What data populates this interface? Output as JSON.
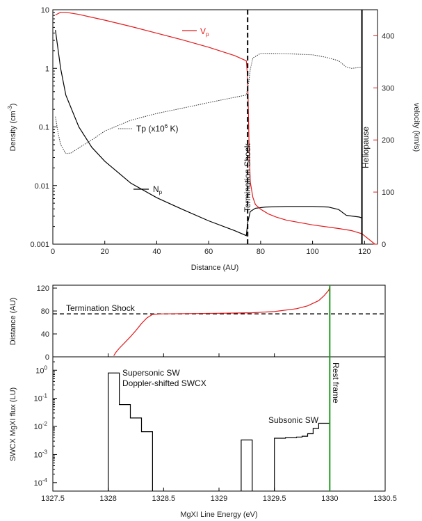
{
  "colors": {
    "velocity": "#e31a1c",
    "rest_frame": "#1a9a1a",
    "axis": "#000000"
  },
  "chart_data": [
    {
      "type": "line",
      "xlabel": "Distance (AU)",
      "ylabel": "Density (cm",
      "ylabel_sup": "-3",
      "ylabel_tail": ")",
      "ylabel_right": "velocity (km/s)",
      "xlim": [
        0,
        125
      ],
      "ylim": [
        0.001,
        10
      ],
      "ylim_right": [
        0,
        450
      ],
      "y_scale": "log",
      "x_ticks": [
        "0",
        "20",
        "40",
        "60",
        "80",
        "100",
        "120"
      ],
      "y_ticks": [
        "0.001",
        "0.01",
        "0.1",
        "1",
        "10"
      ],
      "y_right_ticks": [
        "0",
        "100",
        "200",
        "300",
        "400"
      ],
      "labels": {
        "vp": "V",
        "vp_sub": "p",
        "np": "N",
        "np_sub": "p",
        "tp": "Tp (x10",
        "tp_sup": "6",
        "tp_tail": " K)",
        "termination_shock": "Termination Shock",
        "heliopause": "Heliopause"
      },
      "termination_shock_x": 75,
      "heliopause_x": 119,
      "series": [
        {
          "id": "np",
          "axis": "left",
          "x": [
            1,
            3,
            5,
            10,
            15,
            20,
            30,
            40,
            50,
            60,
            70,
            74.5,
            75,
            76,
            78,
            82,
            90,
            100,
            106,
            110,
            113,
            118,
            119
          ],
          "y": [
            4.5,
            1.0,
            0.35,
            0.1,
            0.045,
            0.026,
            0.011,
            0.0062,
            0.0039,
            0.0025,
            0.0017,
            0.0014,
            0.0023,
            0.0036,
            0.0041,
            0.0043,
            0.0044,
            0.0044,
            0.0043,
            0.0039,
            0.0031,
            0.0029,
            0.0028
          ]
        },
        {
          "id": "tp",
          "axis": "left",
          "x": [
            1,
            2,
            3,
            5,
            7,
            10,
            15,
            20,
            30,
            40,
            50,
            60,
            70,
            74.5,
            75.5,
            76,
            77,
            80,
            90,
            100,
            105,
            110,
            113,
            115,
            117,
            119
          ],
          "y": [
            0.15,
            0.08,
            0.05,
            0.035,
            0.036,
            0.044,
            0.06,
            0.085,
            0.13,
            0.17,
            0.21,
            0.26,
            0.32,
            0.35,
            0.6,
            0.95,
            1.5,
            1.8,
            1.78,
            1.7,
            1.55,
            1.35,
            1.05,
            1.0,
            1.02,
            1.05
          ]
        },
        {
          "id": "vp",
          "axis": "right",
          "x": [
            1,
            3,
            5,
            10,
            20,
            30,
            40,
            50,
            60,
            70,
            74.5,
            75,
            75.5,
            76,
            77,
            78,
            80,
            83,
            86,
            90,
            100,
            110,
            115,
            119,
            124
          ],
          "y": [
            440,
            445,
            445,
            441,
            430,
            418,
            405,
            392,
            378,
            362,
            352,
            320,
            200,
            120,
            90,
            76,
            67,
            58,
            52,
            46,
            37,
            30,
            26,
            20,
            0
          ]
        }
      ]
    },
    {
      "type": "line",
      "ylabel": "Distance (AU)",
      "xlim": [
        1327.5,
        1330.5
      ],
      "ylim": [
        0,
        125
      ],
      "y_ticks": [
        "0",
        "40",
        "80",
        "120"
      ],
      "labels": {
        "termination_shock": "Termination Shock"
      },
      "termination_shock_y": 75,
      "series": [
        {
          "id": "distance",
          "x": [
            1328.05,
            1328.07,
            1328.1,
            1328.15,
            1328.2,
            1328.25,
            1328.3,
            1328.35,
            1328.4,
            1328.5,
            1328.7,
            1329.0,
            1329.3,
            1329.5,
            1329.7,
            1329.8,
            1329.9,
            1329.95,
            1329.99,
            1330.0
          ],
          "y": [
            2,
            8,
            15,
            25,
            35,
            46,
            58,
            68,
            74,
            75,
            75.5,
            76,
            77,
            79,
            84,
            89,
            98,
            107,
            116,
            122
          ]
        }
      ]
    },
    {
      "type": "line",
      "xlabel": "MgXI Line Energy (eV)",
      "ylabel": "SWCX MgXI flux (LU)",
      "xlim": [
        1327.5,
        1330.5
      ],
      "ylim": [
        5e-05,
        3
      ],
      "y_scale": "log",
      "x_ticks": [
        "1327.5",
        "1328",
        "1328.5",
        "1329",
        "1329.5",
        "1330",
        "1330.5"
      ],
      "y_ticks": [
        {
          "base": "10",
          "exp": "-4"
        },
        {
          "base": "10",
          "exp": "-3"
        },
        {
          "base": "10",
          "exp": "-2"
        },
        {
          "base": "10",
          "exp": "-1"
        },
        {
          "base": "10",
          "exp": "0"
        }
      ],
      "labels": {
        "supersonic_1": "Supersonic SW",
        "supersonic_2": "Doppler-shifted SWCX",
        "subsonic": "Subsonic SW",
        "rest_frame": "Rest frame"
      },
      "rest_frame_x": 1330.0,
      "series": [
        {
          "id": "flux",
          "bins": [
            [
              1328.0,
              1328.1,
              0.8
            ],
            [
              1328.1,
              1328.2,
              0.06
            ],
            [
              1328.2,
              1328.3,
              0.02
            ],
            [
              1328.3,
              1328.4,
              0.0065
            ],
            [
              1329.2,
              1329.3,
              0.0033
            ],
            [
              1329.5,
              1329.6,
              0.0038
            ],
            [
              1329.6,
              1329.7,
              0.004
            ],
            [
              1329.7,
              1329.75,
              0.0042
            ],
            [
              1329.75,
              1329.8,
              0.0045
            ],
            [
              1329.8,
              1329.85,
              0.0055
            ],
            [
              1329.85,
              1329.9,
              0.0085
            ],
            [
              1329.9,
              1330.0,
              0.013
            ]
          ]
        }
      ]
    }
  ]
}
